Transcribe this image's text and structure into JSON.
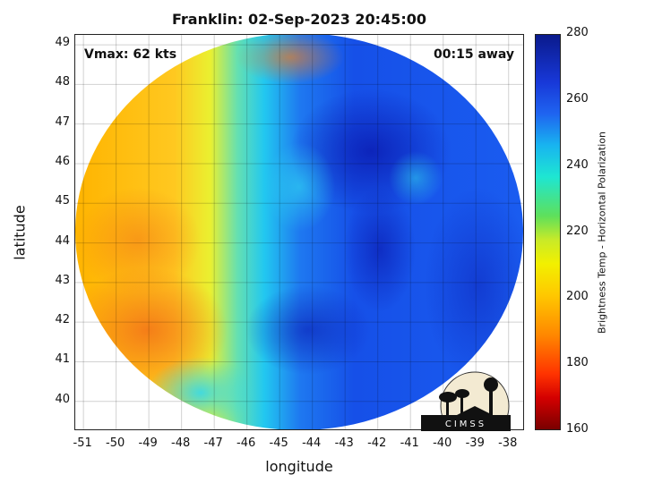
{
  "title": "Franklin: 02-Sep-2023 20:45:00",
  "annotations": {
    "vmax": "Vmax: 62 kts",
    "time_offset": "00:15 away"
  },
  "axes": {
    "xlabel": "longitude",
    "ylabel": "latitude",
    "xticks": [
      "-51",
      "-50",
      "-49",
      "-48",
      "-47",
      "-46",
      "-45",
      "-44",
      "-43",
      "-42",
      "-41",
      "-40",
      "-39",
      "-38"
    ],
    "yticks": [
      "49",
      "48",
      "47",
      "46",
      "45",
      "44",
      "43",
      "42",
      "41",
      "40"
    ],
    "xlim": [
      -51.25,
      -37.5
    ],
    "ylim": [
      39.25,
      49.25
    ]
  },
  "colorbar": {
    "label": "Brightness Temp - Horizontal Polarization",
    "ticks": [
      "280",
      "260",
      "240",
      "220",
      "200",
      "180",
      "160"
    ],
    "range": [
      160,
      280
    ],
    "colormap": [
      "#7a0000",
      "#ff3300",
      "#ffc800",
      "#f2f000",
      "#5fe05a",
      "#1ee6d2",
      "#1f64f0",
      "#0a1a8c"
    ]
  },
  "logo": {
    "text": "CIMSS"
  },
  "grid": true
}
